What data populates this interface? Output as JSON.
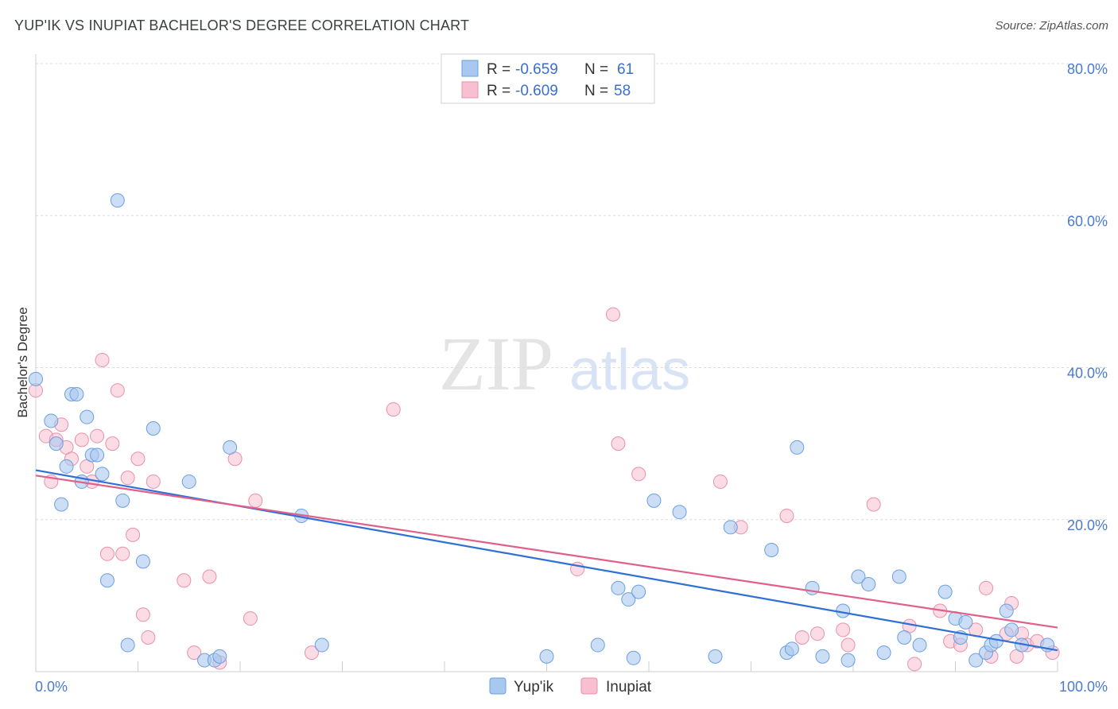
{
  "title": "YUP'IK VS INUPIAT BACHELOR'S DEGREE CORRELATION CHART",
  "source": "Source: ZipAtlas.com",
  "watermark": {
    "zip": "ZIP",
    "atlas": "atlas"
  },
  "colors": {
    "blue_fill": "#a8c8f0",
    "blue_stroke": "#6a9fe0",
    "blue_line": "#2f6fd6",
    "pink_fill": "#f7bfd0",
    "pink_stroke": "#e890ab",
    "pink_line": "#e0608a",
    "axis_text": "#4a7bd0",
    "grid": "#d9d9d9"
  },
  "legend": {
    "yupik": {
      "r_label": "R =",
      "r_value": "-0.659",
      "n_label": "N =",
      "n_value": "61"
    },
    "inupiat": {
      "r_label": "R =",
      "r_value": "-0.609",
      "n_label": "N =",
      "n_value": "58"
    }
  },
  "chart_data": {
    "type": "scatter",
    "title": "YUP'IK VS INUPIAT BACHELOR'S DEGREE CORRELATION CHART",
    "xlabel": "",
    "ylabel": "Bachelor's Degree",
    "xlim": [
      0,
      100
    ],
    "ylim": [
      0,
      80
    ],
    "x_tick_labels": [
      "0.0%",
      "100.0%"
    ],
    "y_ticks": [
      20,
      40,
      60,
      80
    ],
    "y_tick_labels": [
      "20.0%",
      "40.0%",
      "60.0%",
      "80.0%"
    ],
    "grid": true,
    "legend_position": "bottom",
    "series": [
      {
        "name": "Yup'ik",
        "color": "#a8c8f0",
        "trend": {
          "x": [
            0,
            100
          ],
          "y": [
            26.5,
            2.8
          ]
        },
        "points": [
          [
            0,
            38.5
          ],
          [
            1.5,
            33
          ],
          [
            2,
            30
          ],
          [
            2.5,
            22
          ],
          [
            3,
            27
          ],
          [
            3.5,
            36.5
          ],
          [
            4,
            36.5
          ],
          [
            4.5,
            25
          ],
          [
            5,
            33.5
          ],
          [
            5.5,
            28.5
          ],
          [
            6,
            28.5
          ],
          [
            6.5,
            26
          ],
          [
            7,
            12
          ],
          [
            8,
            62
          ],
          [
            8.5,
            22.5
          ],
          [
            9,
            3.5
          ],
          [
            10.5,
            14.5
          ],
          [
            11.5,
            32
          ],
          [
            15,
            25
          ],
          [
            16.5,
            1.5
          ],
          [
            17.5,
            1.5
          ],
          [
            18,
            2
          ],
          [
            19,
            29.5
          ],
          [
            26,
            20.5
          ],
          [
            28,
            3.5
          ],
          [
            50,
            2
          ],
          [
            55,
            3.5
          ],
          [
            57,
            11
          ],
          [
            58,
            9.5
          ],
          [
            58.5,
            1.8
          ],
          [
            59,
            10.5
          ],
          [
            60.5,
            22.5
          ],
          [
            63,
            21
          ],
          [
            66.5,
            2
          ],
          [
            68,
            19
          ],
          [
            72,
            16
          ],
          [
            73.5,
            2.5
          ],
          [
            74,
            3
          ],
          [
            74.5,
            29.5
          ],
          [
            76,
            11
          ],
          [
            77,
            2
          ],
          [
            79,
            8
          ],
          [
            79.5,
            1.5
          ],
          [
            80.5,
            12.5
          ],
          [
            81.5,
            11.5
          ],
          [
            83,
            2.5
          ],
          [
            84.5,
            12.5
          ],
          [
            85,
            4.5
          ],
          [
            86.5,
            3.5
          ],
          [
            89,
            10.5
          ],
          [
            90,
            7
          ],
          [
            90.5,
            4.5
          ],
          [
            91,
            6.5
          ],
          [
            92,
            1.5
          ],
          [
            93,
            2.5
          ],
          [
            93.5,
            3.5
          ],
          [
            94,
            4
          ],
          [
            95,
            8
          ],
          [
            95.5,
            5.5
          ],
          [
            96.5,
            3.5
          ],
          [
            99,
            3.5
          ]
        ]
      },
      {
        "name": "Inupiat",
        "color": "#f7bfd0",
        "trend": {
          "x": [
            0,
            100
          ],
          "y": [
            25.8,
            5.8
          ]
        },
        "points": [
          [
            0,
            37
          ],
          [
            1,
            31
          ],
          [
            1.5,
            25
          ],
          [
            2,
            30.5
          ],
          [
            2.5,
            32.5
          ],
          [
            3,
            29.5
          ],
          [
            3.5,
            28
          ],
          [
            4.5,
            30.5
          ],
          [
            5,
            27
          ],
          [
            5.5,
            25
          ],
          [
            6,
            31
          ],
          [
            6.5,
            41
          ],
          [
            7,
            15.5
          ],
          [
            7.5,
            30
          ],
          [
            8,
            37
          ],
          [
            8.5,
            15.5
          ],
          [
            9,
            25.5
          ],
          [
            9.5,
            18
          ],
          [
            10,
            28
          ],
          [
            10.5,
            7.5
          ],
          [
            11,
            4.5
          ],
          [
            11.5,
            25
          ],
          [
            14.5,
            12
          ],
          [
            15.5,
            2.5
          ],
          [
            17,
            12.5
          ],
          [
            18,
            1.2
          ],
          [
            19.5,
            28
          ],
          [
            21,
            7
          ],
          [
            21.5,
            22.5
          ],
          [
            27,
            2.5
          ],
          [
            35,
            34.5
          ],
          [
            53,
            13.5
          ],
          [
            56.5,
            47
          ],
          [
            57,
            30
          ],
          [
            59,
            26
          ],
          [
            67,
            25
          ],
          [
            69,
            19
          ],
          [
            73.5,
            20.5
          ],
          [
            75,
            4.5
          ],
          [
            76.5,
            5
          ],
          [
            79,
            5.5
          ],
          [
            79.5,
            3.5
          ],
          [
            82,
            22
          ],
          [
            85.5,
            6
          ],
          [
            86,
            1
          ],
          [
            88.5,
            8
          ],
          [
            89.5,
            4
          ],
          [
            90.5,
            3.5
          ],
          [
            92,
            5.5
          ],
          [
            93,
            11
          ],
          [
            93.5,
            2
          ],
          [
            95,
            5
          ],
          [
            95.5,
            9
          ],
          [
            96,
            2
          ],
          [
            96.5,
            5
          ],
          [
            97,
            3.5
          ],
          [
            98,
            4
          ],
          [
            99.5,
            2.5
          ]
        ]
      }
    ]
  }
}
